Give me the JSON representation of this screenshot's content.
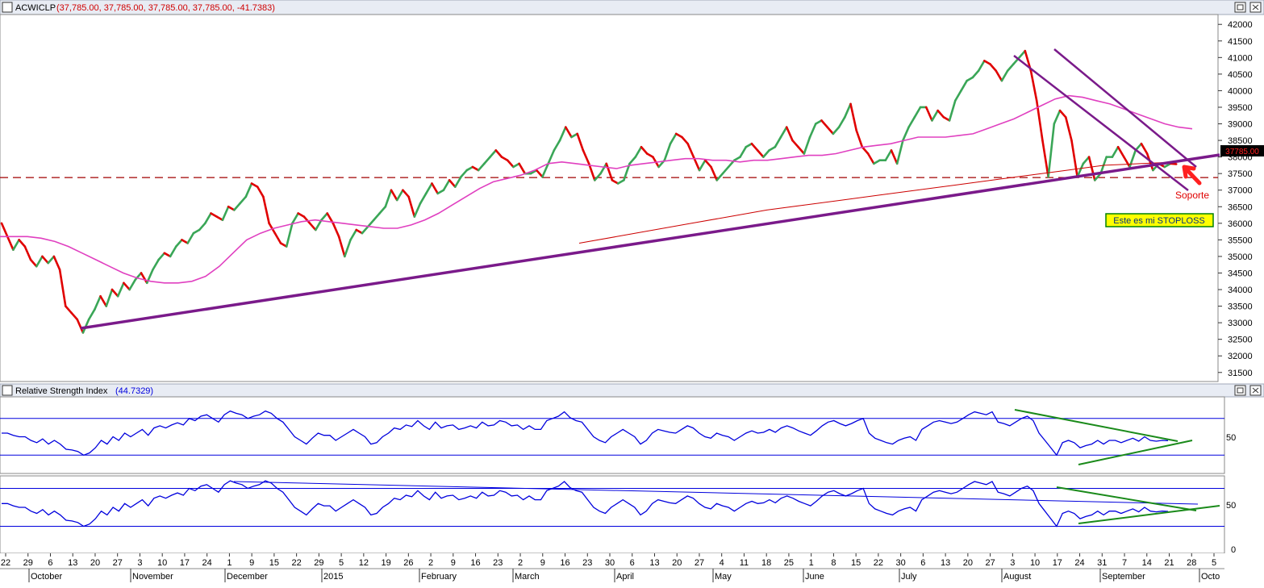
{
  "price_panel": {
    "title": "ACWICLP",
    "values": "(37,785.00, 37,785.00, 37,785.00, 37,785.00, -41.7383)",
    "last_price_tag": "37785.00",
    "support_label": "Soporte",
    "stoploss_label": "Este es mi STOPLOSS"
  },
  "rsi_panel": {
    "title": "Relative Strength Index",
    "value": "(44.7329)",
    "axis_label": "50"
  },
  "rsi2_panel": {
    "axis_label": "50"
  },
  "date_axis": {
    "day_ticks": [
      "22",
      "29",
      "6",
      "13",
      "20",
      "27",
      "3",
      "10",
      "17",
      "24",
      "1",
      "9",
      "15",
      "22",
      "29",
      "5",
      "12",
      "19",
      "26",
      "2",
      "9",
      "16",
      "23",
      "2",
      "9",
      "16",
      "23",
      "30",
      "6",
      "13",
      "20",
      "27",
      "4",
      "11",
      "18",
      "25",
      "1",
      "8",
      "15",
      "22",
      "30",
      "6",
      "13",
      "20",
      "27",
      "3",
      "10",
      "17",
      "24",
      "31",
      "7",
      "14",
      "21",
      "28",
      "5"
    ],
    "months": [
      "October",
      "November",
      "December",
      "2015",
      "February",
      "March",
      "April",
      "May",
      "June",
      "July",
      "August",
      "September",
      "Octo"
    ],
    "right_label": "0"
  },
  "chart_data": [
    {
      "type": "line",
      "title": "ACWICLP",
      "ylim": [
        31300,
        42200
      ],
      "y_ticks": [
        31500,
        32000,
        32500,
        33000,
        33500,
        34000,
        34500,
        35000,
        35500,
        36000,
        36500,
        37000,
        37500,
        38000,
        38500,
        39000,
        39500,
        40000,
        40500,
        41000,
        41500,
        42000
      ],
      "x_range": [
        0,
        257
      ],
      "series": [
        {
          "kind": "price",
          "up_color": "#3aa657",
          "down_color": "#e00000",
          "values": [
            36000,
            35600,
            35200,
            35500,
            35300,
            34900,
            34700,
            35000,
            34800,
            35000,
            34600,
            33500,
            33300,
            33100,
            32700,
            33100,
            33400,
            33800,
            33500,
            34000,
            33800,
            34200,
            34000,
            34300,
            34500,
            34200,
            34600,
            34900,
            35100,
            35000,
            35300,
            35500,
            35400,
            35700,
            35800,
            36000,
            36300,
            36200,
            36100,
            36500,
            36400,
            36600,
            36800,
            37200,
            37100,
            36800,
            36000,
            35700,
            35400,
            35300,
            36000,
            36300,
            36200,
            36000,
            35800,
            36100,
            36300,
            36000,
            35600,
            35000,
            35500,
            35800,
            35700,
            35900,
            36100,
            36300,
            36500,
            37000,
            36700,
            37000,
            36800,
            36200,
            36600,
            36900,
            37200,
            36900,
            37000,
            37300,
            37100,
            37400,
            37600,
            37700,
            37600,
            37800,
            38000,
            38200,
            38000,
            37900,
            37700,
            37800,
            37500,
            37500,
            37600,
            37400,
            37800,
            38200,
            38500,
            38900,
            38600,
            38700,
            38200,
            37800,
            37300,
            37500,
            37800,
            37300,
            37200,
            37300,
            37800,
            38000,
            38300,
            38100,
            38000,
            37700,
            37900,
            38400,
            38700,
            38600,
            38400,
            38000,
            37600,
            37900,
            37700,
            37300,
            37500,
            37700,
            37900,
            38000,
            38300,
            38400,
            38200,
            38000,
            38200,
            38300,
            38600,
            38900,
            38500,
            38300,
            38100,
            38600,
            39000,
            39100,
            38900,
            38700,
            38900,
            39200,
            39600,
            38800,
            38300,
            38100,
            37800,
            37900,
            37900,
            38200,
            37800,
            38500,
            38900,
            39200,
            39500,
            39500,
            39100,
            39400,
            39200,
            39100,
            39700,
            40000,
            40300,
            40400,
            40600,
            40900,
            40800,
            40600,
            40300,
            40600,
            40800,
            41000,
            41200,
            40600,
            39700,
            38500,
            37400,
            39000,
            39400,
            39200,
            38500,
            37400,
            37800,
            38000,
            37300,
            37500,
            38000,
            38000,
            38300,
            38000,
            37700,
            38200,
            38400,
            38100,
            37600,
            37800,
            37700,
            37800,
            37785
          ]
        },
        {
          "kind": "moving-average",
          "color": "#e040c0",
          "values": [
            35600,
            35600,
            35600,
            35550,
            35450,
            35300,
            35100,
            34900,
            34700,
            34500,
            34350,
            34250,
            34200,
            34200,
            34250,
            34400,
            34700,
            35100,
            35500,
            35700,
            35850,
            35950,
            36050,
            36100,
            36050,
            36000,
            35950,
            35900,
            35850,
            35850,
            35950,
            36100,
            36300,
            36550,
            36800,
            37050,
            37250,
            37350,
            37450,
            37600,
            37800,
            37850,
            37800,
            37750,
            37700,
            37650,
            37750,
            37800,
            37850,
            37900,
            37950,
            37950,
            37900,
            37900,
            37850,
            37900,
            37900,
            37950,
            38000,
            38050,
            38050,
            38100,
            38200,
            38300,
            38350,
            38400,
            38500,
            38600,
            38600,
            38600,
            38650,
            38700,
            38850,
            39000,
            39150,
            39350,
            39550,
            39750,
            39850,
            39800,
            39700,
            39600,
            39450,
            39300,
            39150,
            39000,
            38900,
            38850
          ]
        },
        {
          "kind": "moving-average",
          "color": "#cc0000",
          "values": [
            35400,
            35600,
            35800,
            36000,
            36200,
            36400,
            36550,
            36700,
            36850,
            37000,
            37150,
            37300,
            37450,
            37600,
            37750,
            37800,
            37850
          ]
        }
      ],
      "reference_line": {
        "value": 37380,
        "color": "#a00000",
        "style": "dashed"
      }
    },
    {
      "type": "line",
      "title": "Relative Strength Index",
      "ylim": [
        0,
        100
      ],
      "y_ticks": [
        50
      ],
      "bands": [
        25,
        75
      ],
      "series": [
        {
          "kind": "rsi",
          "color": "#0000dd",
          "values": [
            55,
            55,
            52,
            50,
            50,
            45,
            42,
            47,
            40,
            45,
            40,
            33,
            32,
            30,
            25,
            28,
            35,
            45,
            40,
            50,
            45,
            55,
            50,
            55,
            60,
            52,
            62,
            65,
            62,
            66,
            69,
            66,
            75,
            72,
            78,
            80,
            75,
            70,
            80,
            85,
            82,
            80,
            75,
            78,
            80,
            85,
            82,
            75,
            70,
            60,
            50,
            45,
            40,
            48,
            55,
            52,
            52,
            45,
            50,
            55,
            60,
            55,
            50,
            40,
            42,
            50,
            55,
            62,
            60,
            66,
            64,
            72,
            65,
            60,
            70,
            62,
            65,
            66,
            60,
            62,
            65,
            62,
            70,
            65,
            66,
            72,
            70,
            65,
            66,
            60,
            65,
            60,
            60,
            72,
            75,
            78,
            84,
            76,
            72,
            70,
            60,
            50,
            45,
            42,
            50,
            55,
            60,
            55,
            50,
            40,
            45,
            55,
            60,
            58,
            56,
            55,
            60,
            65,
            62,
            55,
            50,
            48,
            55,
            52,
            50,
            45,
            50,
            55,
            58,
            55,
            56,
            60,
            56,
            62,
            65,
            62,
            58,
            55,
            52,
            58,
            65,
            70,
            72,
            68,
            65,
            68,
            72,
            75,
            55,
            48,
            45,
            42,
            40,
            45,
            48,
            50,
            45,
            60,
            65,
            70,
            72,
            70,
            68,
            70,
            75,
            80,
            84,
            82,
            80,
            84,
            70,
            68,
            65,
            70,
            75,
            78,
            72,
            55,
            45,
            35,
            25,
            42,
            45,
            42,
            35,
            38,
            40,
            45,
            40,
            45,
            45,
            42,
            45,
            48,
            44,
            50,
            45,
            44,
            45,
            44.7
          ]
        }
      ]
    },
    {
      "type": "line",
      "ylim": [
        0,
        100
      ],
      "y_ticks": [
        50
      ],
      "bands": [
        25,
        75
      ],
      "series": [
        {
          "kind": "rsi",
          "color": "#0000dd",
          "values": [
            55,
            55,
            52,
            50,
            50,
            45,
            42,
            47,
            40,
            45,
            40,
            33,
            32,
            30,
            25,
            28,
            35,
            45,
            40,
            50,
            45,
            55,
            50,
            55,
            60,
            52,
            62,
            65,
            62,
            66,
            69,
            66,
            75,
            72,
            78,
            80,
            75,
            70,
            80,
            85,
            82,
            80,
            75,
            78,
            80,
            85,
            82,
            75,
            70,
            60,
            50,
            45,
            40,
            48,
            55,
            52,
            52,
            45,
            50,
            55,
            60,
            55,
            50,
            40,
            42,
            50,
            55,
            62,
            60,
            66,
            64,
            72,
            65,
            60,
            70,
            62,
            65,
            66,
            60,
            62,
            65,
            62,
            70,
            65,
            66,
            72,
            70,
            65,
            66,
            60,
            65,
            60,
            60,
            72,
            75,
            78,
            84,
            76,
            72,
            70,
            60,
            50,
            45,
            42,
            50,
            55,
            60,
            55,
            50,
            40,
            45,
            55,
            60,
            58,
            56,
            55,
            60,
            65,
            62,
            55,
            50,
            48,
            55,
            52,
            50,
            45,
            50,
            55,
            58,
            55,
            56,
            60,
            56,
            62,
            65,
            62,
            58,
            55,
            52,
            58,
            65,
            70,
            72,
            68,
            65,
            68,
            72,
            75,
            55,
            48,
            45,
            42,
            40,
            45,
            48,
            50,
            45,
            60,
            65,
            70,
            72,
            70,
            68,
            70,
            75,
            80,
            84,
            82,
            80,
            84,
            70,
            68,
            65,
            70,
            75,
            78,
            72,
            55,
            45,
            35,
            25,
            42,
            45,
            42,
            35,
            38,
            40,
            45,
            40,
            45,
            45,
            42,
            45,
            48,
            44,
            50,
            45,
            44,
            45,
            44.7
          ]
        }
      ]
    }
  ]
}
